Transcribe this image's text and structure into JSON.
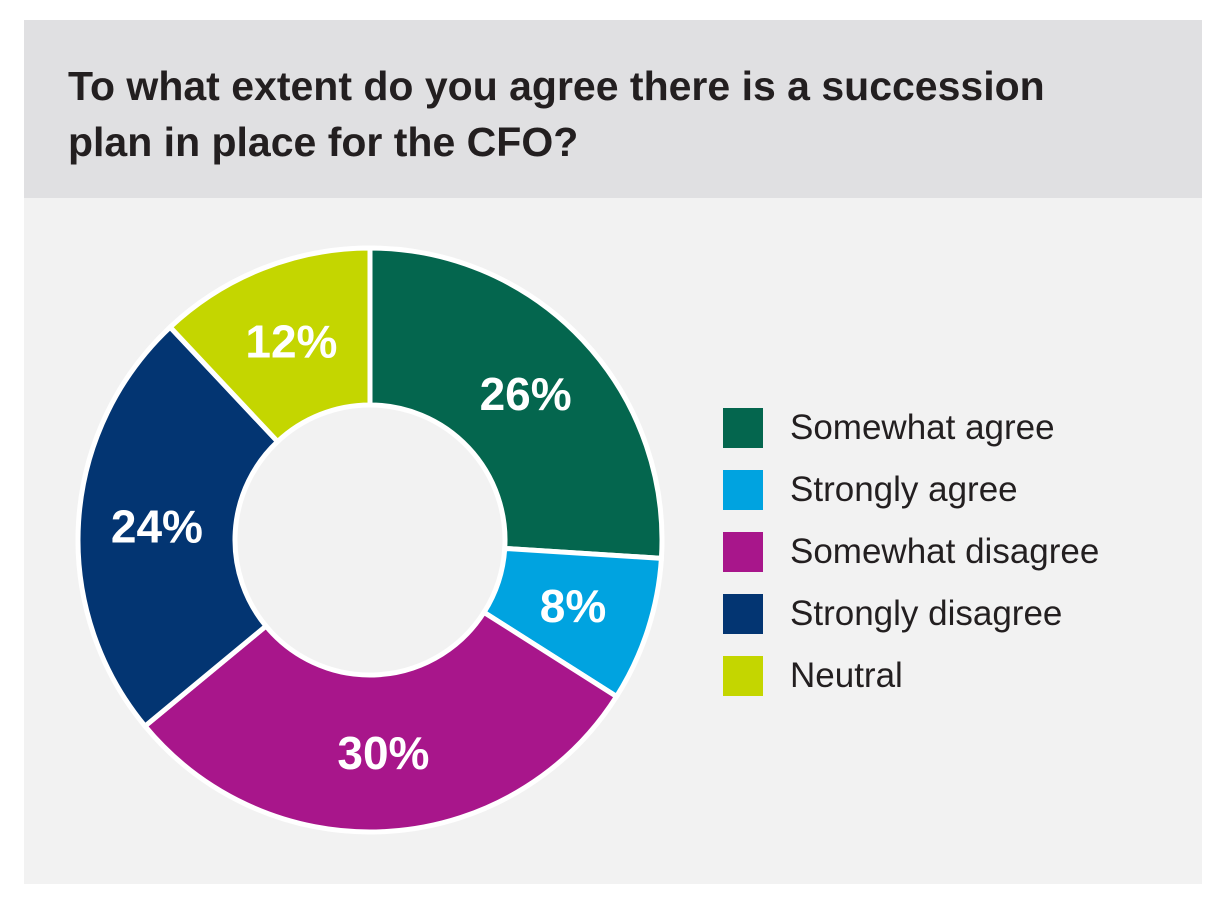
{
  "chart_data": {
    "type": "pie",
    "subtype": "donut",
    "title": "To what extent do you agree there is a succession plan in place for the CFO?",
    "categories": [
      "Somewhat agree",
      "Strongly agree",
      "Somewhat disagree",
      "Strongly disagree",
      "Neutral"
    ],
    "values": [
      26,
      8,
      30,
      24,
      12
    ],
    "labels": [
      "26%",
      "8%",
      "30%",
      "24%",
      "12%"
    ],
    "colors": [
      "#04664e",
      "#00a3e0",
      "#a8168b",
      "#033572",
      "#c4d600"
    ],
    "legend_position": "right"
  }
}
